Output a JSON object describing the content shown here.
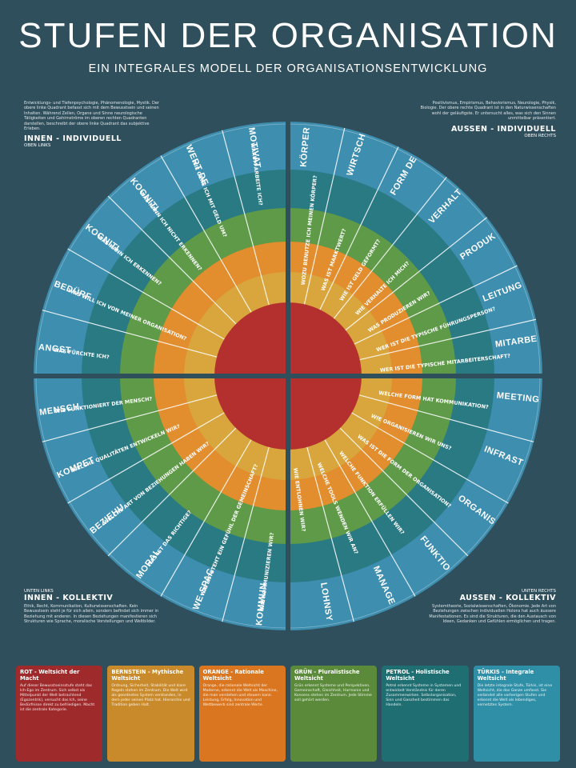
{
  "header": {
    "title": "STUFEN DER ORGANISATION",
    "subtitle": "EIN INTEGRALES MODELL DER ORGANISATIONSENTWICKLUNG"
  },
  "quadrants": {
    "ol": {
      "title": "INNEN - INDIVIDUELL",
      "sub": "OBEN LINKS",
      "text": "Entwicklungs- und Tiefenpsychologie, Phänomenologie, Mystik. Der obere linke Quadrant befasst sich mit dem Bewusstsein und seinen Inhalten. Während Zellen, Organe und Sinne neurologische Tätigkeiten und Gehirnströme im oberen rechten Quadranten darstellen, beschreibt der obere linke Quadrant das subjektive Erleben."
    },
    "or": {
      "title": "AUSSEN - INDIVIDUELL",
      "sub": "OBEN RECHTS",
      "text": "Positivismus, Empirismus, Behaviorismus, Neurologie, Physik, Biologie. Der obere rechte Quadrant ist in den Naturwissenschaften wohl der geläufigste. Er untersucht alles, was sich den Sinnen unmittelbar präsentiert."
    },
    "ul": {
      "pre": "UNTEN LINKS",
      "title": "INNEN - KOLLEKTIV",
      "text": "Ethik, Recht, Kommunikation, Kulturwissenschaften. Kein Bewusstsein steht je für sich allein, sondern befindet sich immer in Beziehung mit anderen. In diesen Beziehungen manifestieren sich Strukturen wie Sprache, moralische Vorstellungen und Weltbilder."
    },
    "ur": {
      "pre": "UNTEN RECHTS",
      "title": "AUSSEN - KOLLEKTIV",
      "text": "Systemtheorie, Sozialwissenschaften, Ökonomie. Jede Art von Beziehungen zwischen individuellen Holons hat auch äussere Manifestationen. Es sind die Strukturen, die den Austausch von Ideen, Gedanken und Gefühlen ermöglichen und tragen."
    }
  },
  "segments": {
    "ol": [
      "MOTIVATION",
      "WERT DES GELDES",
      "KOGNITIVE BLINDHEIT",
      "KOGNITION",
      "BEDÜRFNISSE",
      "ANGST"
    ],
    "or": [
      "KÖRPER",
      "WIRTSCHAFTLICHER KÖRPER",
      "FORM DES GELDES",
      "VERHALTEN",
      "PRODUKT",
      "LEITUNG",
      "MITARBEITER"
    ],
    "ul": [
      "KOMMUNIKATION",
      "WE-SPACE",
      "MORAL",
      "BEZIEHUNGEN",
      "KOMPETENZ",
      "MENSCHENBILD"
    ],
    "ur": [
      "LOHNSYSTEM",
      "MANAGEMENT",
      "FUNKTION",
      "ORGANISATIONSFORM",
      "INFRASTRUKTUR",
      "MEETINGS"
    ]
  },
  "questions": {
    "ol": [
      "WARUM ARBEITE ICH?",
      "WIE GEHE ICH MIT GELD UM?",
      "WAS KANN ICH NICHT ERKENNEN?",
      "WAS KANN ICH ERKENNEN?",
      "WAS WILL ICH VON MEINER ORGANISATION?",
      "WAS FÜRCHTE ICH?"
    ],
    "or": [
      "WOZU BENUTZE ICH MEINEN KÖRPER?",
      "WAS IST MARKTWERT?",
      "WIE IST GELD GEFORMT?",
      "WIE VERHALTE ICH MICH?",
      "WAS PRODUZIEREN WIR?",
      "WER IST DIE TYPISCHE FÜHRUNGSPERSON?",
      "WER IST DIE TYPISCHE MITARBEITERSCHAFT?"
    ],
    "ul": [
      "WIE KOMMUNIZIEREN WIR?",
      "WIE ENTSTEHT EIN GEFÜHL DER GEMEINSCHAFT?",
      "WAS IST DAS RICHTIGE?",
      "WELCHE ART VON BEZIEHUNGEN HABEN WIR?",
      "WELCHE QUALITÄTEN ENTWICKELN WIR?",
      "WIE FUNKTIONIERT DER MENSCH?"
    ],
    "ur": [
      "WIE ENTLOHNEN WIR?",
      "WELCHE TOOLS WENDEN WIR AN?",
      "WELCHE FUNKTION ERFÜLLEN WIR?",
      "WAS IST DIE FORM DER ORGANISATION?",
      "WIE ORGANISIEREN WIR UNS?",
      "WELCHE FORM HAT KOMMUNIKATION?"
    ]
  },
  "legend": [
    {
      "name": "ROT - Weltsicht der Macht",
      "color": "#9e2a2b",
      "text": "Auf dieser Bewusstseinsstufe steht das Ich-Ego im Zentrum. Sich selbst als Mittelpunkt der Welt betrachtend (Egozentrik), versucht das Ich, seine Bedürfnisse direkt zu befriedigen. Macht ist die zentrale Kategorie."
    },
    {
      "name": "BERNSTEIN - Mythische Weltsicht",
      "color": "#c98a2b",
      "text": "Ordnung, Sicherheit, Stabilität und klare Regeln stehen im Zentrum. Die Welt wird als geordnetes System verstanden, in dem jeder seinen Platz hat. Hierarchie und Tradition geben Halt."
    },
    {
      "name": "ORANGE - Rationale Weltsicht",
      "color": "#d9761f",
      "text": "Orange, die rationale Weltsicht der Moderne, erkennt die Welt als Maschine, die man verstehen und steuern kann. Leistung, Erfolg, Innovation und Wettbewerb sind zentrale Werte."
    },
    {
      "name": "GRÜN - Pluralistische Weltsicht",
      "color": "#5a8a3a",
      "text": "Grün erkennt Systeme und Perspektiven. Gemeinschaft, Gleichheit, Harmonie und Konsens stehen im Zentrum. Jede Stimme soll gehört werden."
    },
    {
      "name": "PETROL - Holistische Weltsicht",
      "color": "#1f6e72",
      "text": "Petrol erkennt Systeme in Systemen und entwickelt Verständnis für deren Zusammenwirken. Selbstorganisation, Sinn und Ganzheit bestimmen das Handeln."
    },
    {
      "name": "TÜRKIS - Integrale Weltsicht",
      "color": "#2f8fa7",
      "text": "Die letzte integrale Stufe, Türkis, ist eine Weltsicht, die das Ganze umfasst. Sie verbindet alle vorherigen Stufen und erkennt die Welt als lebendiges, vernetztes System."
    }
  ],
  "colors": {
    "background": "#2f4f5c",
    "rings": [
      "#3e8eb0",
      "#2a7a84",
      "#5e9a48",
      "#e28d2e",
      "#d9a53d",
      "#b3302e"
    ]
  }
}
